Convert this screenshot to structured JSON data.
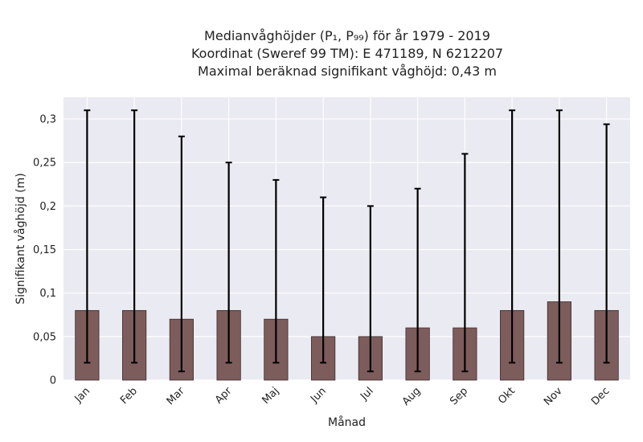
{
  "chart_data": {
    "type": "bar",
    "title_lines": [
      "Medianvåghöjder (P₁, P₉₉) för år 1979 - 2019",
      "Koordinat (Sweref 99 TM): E 471189, N 6212207",
      "Maximal beräknad signifikant våghöjd: 0,43 m"
    ],
    "xlabel": "Månad",
    "ylabel": "Signifikant våghöjd (m)",
    "categories": [
      "Jan",
      "Feb",
      "Mar",
      "Apr",
      "Maj",
      "Jun",
      "Jul",
      "Aug",
      "Sep",
      "Okt",
      "Nov",
      "Dec"
    ],
    "values": [
      0.08,
      0.08,
      0.07,
      0.08,
      0.07,
      0.05,
      0.05,
      0.06,
      0.06,
      0.08,
      0.09,
      0.08
    ],
    "p1": [
      0.02,
      0.02,
      0.01,
      0.02,
      0.02,
      0.02,
      0.01,
      0.01,
      0.01,
      0.02,
      0.02,
      0.02
    ],
    "p99": [
      0.31,
      0.31,
      0.28,
      0.25,
      0.23,
      0.21,
      0.2,
      0.22,
      0.26,
      0.31,
      0.31,
      0.294
    ],
    "yticks": [
      "0",
      "0,05",
      "0,1",
      "0,15",
      "0,2",
      "0,25",
      "0,3"
    ],
    "ytick_values": [
      0,
      0.05,
      0.1,
      0.15,
      0.2,
      0.25,
      0.3
    ],
    "ylim": [
      0,
      0.325
    ],
    "grid": true,
    "colors": {
      "bar": "#7d5c5c",
      "bar_edge": "#3a2a2a",
      "error": "#000000",
      "plot_bg": "#eaeaf2",
      "grid": "#ffffff"
    }
  }
}
